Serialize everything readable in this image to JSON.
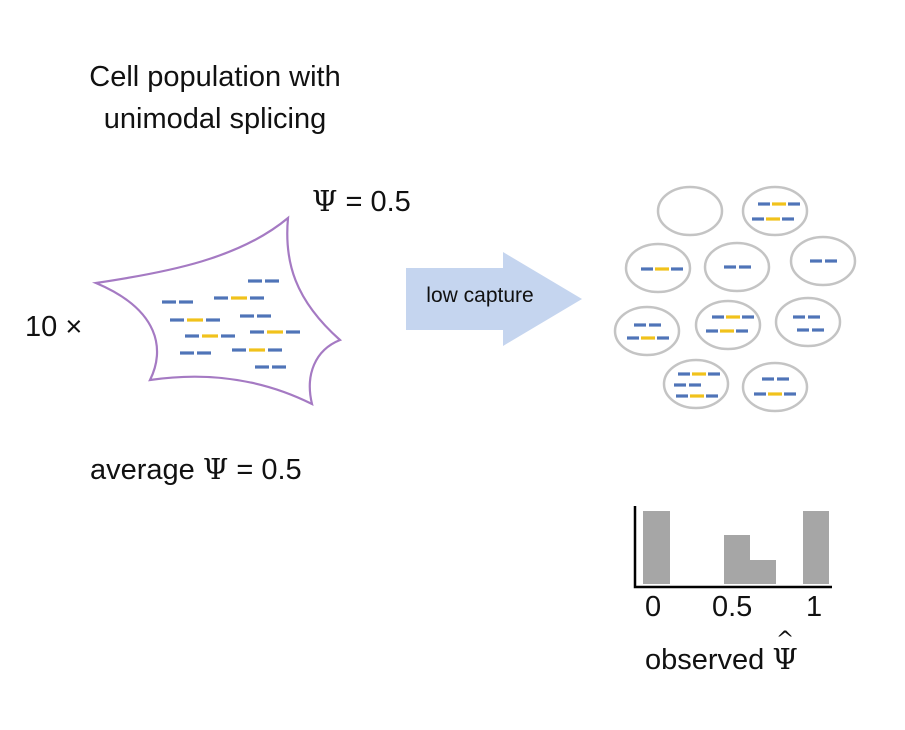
{
  "title_line1": "Cell population with",
  "title_line2": "unimodal splicing",
  "psi_symbol": "Ψ",
  "psi_top_value": "= 0.5",
  "multiplier": "10 ×",
  "avg_prefix": "average",
  "avg_value": "= 0.5",
  "arrow_label": "low capture",
  "histogram": {
    "ticks": [
      "0",
      "0.5",
      "1"
    ],
    "xlabel_prefix": "observed",
    "hat": "^",
    "bins": [
      {
        "x": 0,
        "height": 1.0
      },
      {
        "x": 0.5,
        "height": 0.65
      },
      {
        "x": 0.67,
        "height": 0.33
      },
      {
        "x": 1,
        "height": 1.0
      }
    ]
  },
  "colors": {
    "cell_outline": "#a57ac3",
    "transcript_blue": "#4f74b8",
    "transcript_yellow": "#f1c21b",
    "arrow_fill": "#c5d5ef",
    "droplet_stroke": "#c4c4c4",
    "bar_fill": "#a6a6a6"
  }
}
